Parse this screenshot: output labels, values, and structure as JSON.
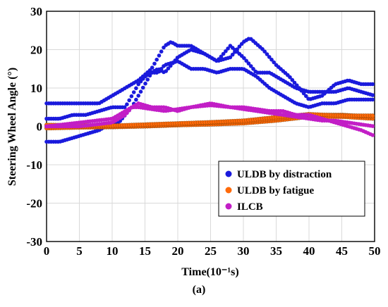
{
  "chart_data": {
    "type": "scatter",
    "xlabel": "Time(10⁻¹s)",
    "ylabel": "Steering Wheel Angle (°)",
    "caption": "(a)",
    "xlim": [
      0,
      50
    ],
    "ylim": [
      -30,
      30
    ],
    "x_ticks": [
      0,
      5,
      10,
      15,
      20,
      25,
      30,
      35,
      40,
      45,
      50
    ],
    "y_ticks": [
      -30,
      -20,
      -10,
      0,
      10,
      20,
      30
    ],
    "grid": true,
    "legend_position": "bottom-right",
    "series": [
      {
        "name": "ULDB by distraction",
        "color": "#1a1adc",
        "tracks": [
          {
            "x": [
              0,
              3,
              5,
              7,
              8,
              10,
              12,
              14,
              16,
              18,
              19,
              20,
              22,
              24,
              26,
              28,
              30,
              31,
              33,
              35,
              37,
              39,
              40,
              42,
              44,
              46,
              48,
              50
            ],
            "y": [
              6,
              6,
              6,
              6,
              6,
              8,
              10,
              12,
              15,
              21,
              22,
              21,
              21,
              19,
              17,
              18,
              22,
              23,
              20,
              16,
              13,
              9,
              7,
              8,
              11,
              12,
              11,
              11
            ]
          },
          {
            "x": [
              0,
              2,
              4,
              6,
              8,
              10,
              11,
              12,
              13,
              14,
              15,
              16,
              17,
              18,
              20,
              22,
              24,
              26,
              28,
              30,
              32,
              34,
              36,
              38,
              40,
              42,
              44,
              46,
              48,
              50
            ],
            "y": [
              2,
              2,
              3,
              3,
              4,
              5,
              5,
              5,
              8,
              11,
              13,
              14,
              14,
              16,
              17,
              15,
              15,
              14,
              15,
              15,
              13,
              10,
              8,
              6,
              5,
              6,
              6,
              7,
              7,
              7
            ]
          },
          {
            "x": [
              0,
              2,
              4,
              6,
              8,
              9,
              10,
              11,
              12,
              13,
              14,
              15,
              16,
              17,
              18,
              20,
              22,
              24,
              26,
              28,
              30,
              32,
              34,
              36,
              38,
              40,
              42,
              44,
              46,
              48,
              50
            ],
            "y": [
              -4,
              -4,
              -3,
              -2,
              -1,
              0,
              0,
              1,
              3,
              5,
              8,
              11,
              14,
              15,
              14,
              18,
              20,
              19,
              17,
              21,
              18,
              14,
              14,
              12,
              10,
              9,
              9,
              9,
              10,
              9,
              8
            ]
          }
        ]
      },
      {
        "name": "ULDB by fatigue",
        "color": "#ff6a0a",
        "tracks": [
          {
            "x": [
              0,
              5,
              10,
              15,
              20,
              25,
              30,
              35,
              40,
              45,
              50
            ],
            "y": [
              -0.5,
              -0.3,
              -0.2,
              0,
              0.3,
              0.5,
              0.8,
              1.5,
              2.5,
              2.5,
              2
            ]
          },
          {
            "x": [
              0,
              5,
              10,
              15,
              20,
              25,
              30,
              35,
              40,
              45,
              50
            ],
            "y": [
              0,
              0,
              0,
              0.2,
              0.5,
              1,
              1.2,
              2,
              3,
              3,
              2.5
            ]
          },
          {
            "x": [
              0,
              5,
              10,
              15,
              20,
              25,
              30,
              35,
              40,
              45,
              50
            ],
            "y": [
              0.4,
              0.3,
              0.2,
              0.5,
              0.8,
              1.1,
              1.5,
              2.4,
              3.2,
              2.8,
              2.8
            ]
          }
        ]
      },
      {
        "name": "ILCB",
        "color": "#c21ec6",
        "tracks": [
          {
            "x": [
              0,
              5,
              10,
              12,
              13,
              14,
              16,
              18,
              20,
              22,
              25,
              28,
              30,
              32,
              34,
              36,
              38,
              40,
              42,
              44,
              46,
              48,
              50
            ],
            "y": [
              0,
              0,
              1,
              3,
              5,
              6,
              5,
              5,
              4,
              5,
              6,
              5,
              5,
              4.5,
              4,
              4,
              3,
              3,
              2,
              1,
              0,
              -1,
              -2.5
            ]
          },
          {
            "x": [
              0,
              5,
              10,
              12,
              13,
              14,
              16,
              18,
              20,
              22,
              25,
              28,
              30,
              32,
              34,
              36,
              38,
              40,
              42,
              44,
              46,
              48,
              50
            ],
            "y": [
              0,
              1,
              2,
              4,
              5,
              5,
              4.5,
              4,
              4.5,
              5,
              5.5,
              5,
              4.5,
              4,
              3.5,
              3,
              2.5,
              2,
              1.5,
              1.5,
              1,
              0.5,
              0
            ]
          }
        ]
      }
    ]
  }
}
